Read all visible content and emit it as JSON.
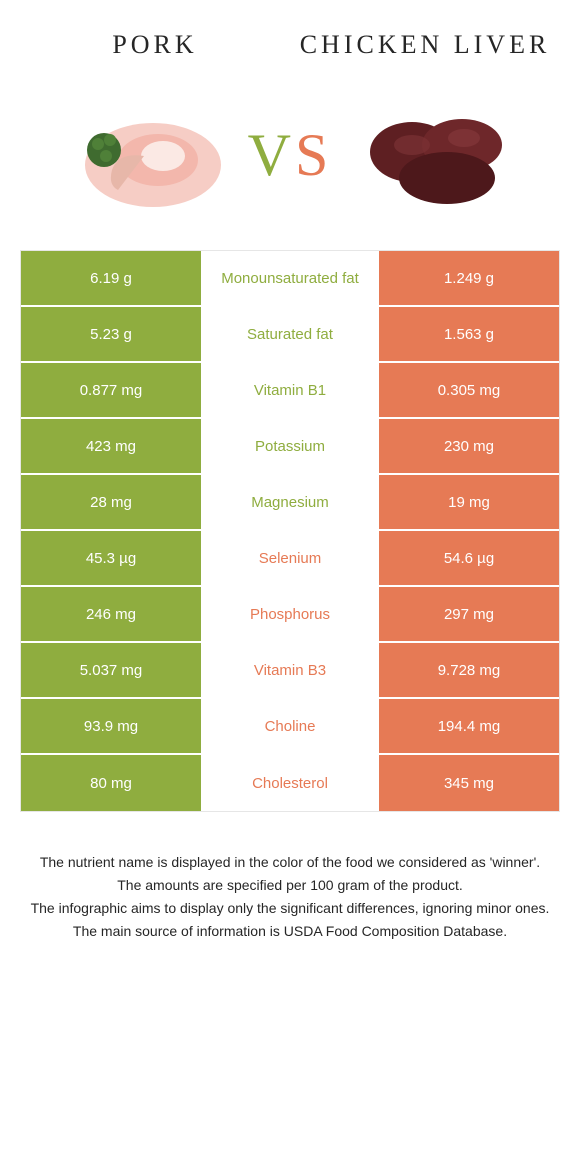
{
  "colors": {
    "left": "#8fad3f",
    "right": "#e67a55",
    "text": "#262626",
    "bg": "#ffffff"
  },
  "header": {
    "left_title": "Pork",
    "right_title": "Chicken Liver",
    "vs_v": "V",
    "vs_s": "S"
  },
  "rows": [
    {
      "left": "6.19 g",
      "label": "Monounsaturated fat",
      "right": "1.249 g",
      "winner": "left"
    },
    {
      "left": "5.23 g",
      "label": "Saturated fat",
      "right": "1.563 g",
      "winner": "left"
    },
    {
      "left": "0.877 mg",
      "label": "Vitamin B1",
      "right": "0.305 mg",
      "winner": "left"
    },
    {
      "left": "423 mg",
      "label": "Potassium",
      "right": "230 mg",
      "winner": "left"
    },
    {
      "left": "28 mg",
      "label": "Magnesium",
      "right": "19 mg",
      "winner": "left"
    },
    {
      "left": "45.3 µg",
      "label": "Selenium",
      "right": "54.6 µg",
      "winner": "right"
    },
    {
      "left": "246 mg",
      "label": "Phosphorus",
      "right": "297 mg",
      "winner": "right"
    },
    {
      "left": "5.037 mg",
      "label": "Vitamin B3",
      "right": "9.728 mg",
      "winner": "right"
    },
    {
      "left": "93.9 mg",
      "label": "Choline",
      "right": "194.4 mg",
      "winner": "right"
    },
    {
      "left": "80 mg",
      "label": "Cholesterol",
      "right": "345 mg",
      "winner": "right"
    }
  ],
  "footer": {
    "line1": "The nutrient name is displayed in the color of the food we considered as 'winner'.",
    "line2": "The amounts are specified per 100 gram of the product.",
    "line3": "The infographic aims to display only the significant differences, ignoring minor ones.",
    "line4": "The main source of information is USDA Food Composition Database."
  }
}
